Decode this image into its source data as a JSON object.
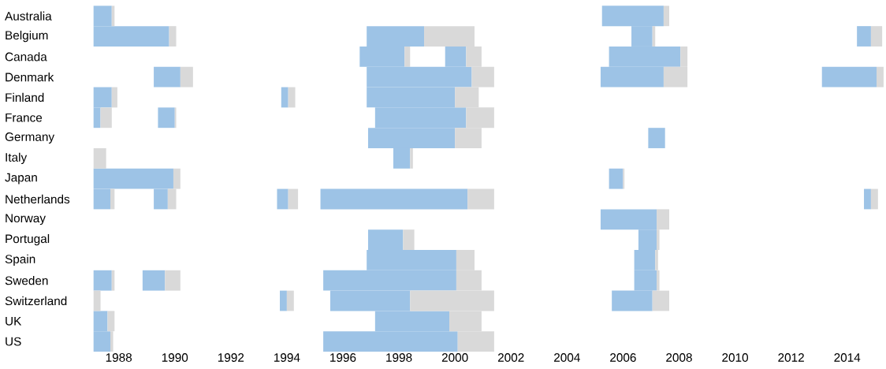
{
  "chart_data": {
    "type": "bar",
    "orientation": "horizontal",
    "categories": [
      "Australia",
      "Belgium",
      "Canada",
      "Denmark",
      "Finland",
      "France",
      "Germany",
      "Italy",
      "Japan",
      "Netherlands",
      "Norway",
      "Portugal",
      "Spain",
      "Sweden",
      "Switzerland",
      "UK",
      "US"
    ],
    "xlim": [
      1987.1,
      2015.35
    ],
    "xticks": [
      1988,
      1990,
      1992,
      1994,
      1996,
      1998,
      2000,
      2002,
      2004,
      2006,
      2008,
      2010,
      2012,
      2014
    ],
    "series": [
      {
        "color": "#9dc3e6",
        "base": [
          1987.1,
          1987.1,
          null,
          null,
          1987.1,
          1987.1,
          null,
          null,
          1987.1,
          1987.1,
          null,
          null,
          null,
          1987.1,
          null,
          1987.1,
          1987.1
        ],
        "values": [
          0.65,
          2.7,
          null,
          null,
          0.65,
          0.25,
          null,
          null,
          2.85,
          0.6,
          null,
          null,
          null,
          0.65,
          null,
          0.5,
          0.6
        ]
      },
      {
        "color": "#d9d9d9",
        "base": [
          1987.75,
          1989.8,
          null,
          null,
          1987.75,
          1987.35,
          null,
          1987.1,
          1989.95,
          1987.7,
          null,
          null,
          null,
          1987.75,
          1987.1,
          1987.6,
          1987.7
        ],
        "values": [
          0.1,
          0.25,
          null,
          null,
          0.2,
          0.4,
          null,
          0.45,
          0.25,
          0.15,
          null,
          null,
          null,
          0.1,
          0.25,
          0.25,
          0.1
        ]
      },
      {
        "color": "#9dc3e6",
        "base": [
          null,
          null,
          null,
          1989.25,
          null,
          1989.4,
          null,
          null,
          null,
          1989.25,
          null,
          null,
          null,
          1988.85,
          null,
          null,
          null
        ],
        "values": [
          null,
          null,
          null,
          0.95,
          null,
          0.6,
          null,
          null,
          null,
          0.5,
          null,
          null,
          null,
          0.8,
          null,
          null,
          null
        ]
      },
      {
        "color": "#d9d9d9",
        "base": [
          null,
          null,
          null,
          1990.2,
          null,
          1990.0,
          null,
          null,
          null,
          1989.75,
          null,
          null,
          null,
          1989.65,
          null,
          null,
          null
        ],
        "values": [
          null,
          null,
          null,
          0.45,
          null,
          0.05,
          null,
          null,
          null,
          0.3,
          null,
          null,
          null,
          0.55,
          null,
          null,
          null
        ]
      },
      {
        "color": "#9dc3e6",
        "base": [
          null,
          null,
          1996.6,
          null,
          1993.8,
          null,
          null,
          null,
          null,
          1993.65,
          null,
          null,
          null,
          null,
          1993.75,
          null,
          null
        ],
        "values": [
          null,
          null,
          1.6,
          null,
          0.25,
          null,
          null,
          null,
          null,
          0.4,
          null,
          null,
          null,
          null,
          0.25,
          null,
          null
        ]
      },
      {
        "color": "#d9d9d9",
        "base": [
          null,
          null,
          1998.2,
          null,
          1994.05,
          null,
          null,
          null,
          null,
          1994.05,
          null,
          null,
          null,
          null,
          1994.0,
          null,
          null
        ],
        "values": [
          null,
          null,
          0.2,
          null,
          0.25,
          null,
          null,
          null,
          null,
          0.35,
          null,
          null,
          null,
          null,
          0.25,
          null,
          null
        ]
      },
      {
        "color": "#9dc3e6",
        "base": [
          null,
          1996.85,
          1999.65,
          1996.85,
          1996.85,
          1997.15,
          1996.9,
          1997.8,
          null,
          1995.2,
          null,
          1996.9,
          1996.85,
          1995.3,
          1995.55,
          1997.15,
          1995.3
        ],
        "values": [
          null,
          2.05,
          0.75,
          3.75,
          3.15,
          3.25,
          3.1,
          0.6,
          null,
          5.25,
          null,
          1.25,
          3.2,
          4.75,
          2.85,
          2.65,
          4.8
        ]
      },
      {
        "color": "#d9d9d9",
        "base": [
          null,
          1998.9,
          2000.4,
          2000.6,
          2000.0,
          2000.4,
          2000.0,
          1998.4,
          null,
          2000.45,
          null,
          1998.15,
          2000.05,
          2000.05,
          1998.4,
          1999.8,
          2000.1
        ],
        "values": [
          null,
          1.8,
          0.55,
          0.8,
          0.85,
          1.0,
          0.95,
          0.1,
          null,
          0.95,
          null,
          0.4,
          0.65,
          0.9,
          3.0,
          1.15,
          1.3
        ]
      },
      {
        "color": "#9dc3e6",
        "base": [
          2005.25,
          2006.3,
          2005.5,
          2005.2,
          null,
          null,
          2006.9,
          null,
          2005.5,
          null,
          2005.2,
          2006.55,
          2006.4,
          2006.4,
          2005.6,
          null,
          null
        ],
        "values": [
          2.2,
          0.75,
          2.55,
          2.25,
          null,
          null,
          0.6,
          null,
          0.5,
          null,
          2.0,
          0.65,
          0.75,
          0.8,
          1.45,
          null,
          null
        ]
      },
      {
        "color": "#d9d9d9",
        "base": [
          2007.45,
          2007.05,
          2008.05,
          2007.45,
          null,
          null,
          null,
          null,
          2006.0,
          null,
          2007.2,
          2007.2,
          2007.15,
          2007.2,
          2007.05,
          null,
          null
        ],
        "values": [
          0.2,
          0.1,
          0.25,
          0.85,
          null,
          null,
          null,
          null,
          0.05,
          null,
          0.45,
          0.1,
          0.1,
          0.1,
          0.6,
          null,
          null
        ]
      },
      {
        "color": "#9dc3e6",
        "base": [
          null,
          2014.35,
          null,
          2013.1,
          null,
          null,
          null,
          null,
          null,
          2014.6,
          null,
          null,
          null,
          null,
          null,
          null,
          null
        ],
        "values": [
          null,
          0.5,
          null,
          1.95,
          null,
          null,
          null,
          null,
          null,
          0.25,
          null,
          null,
          null,
          null,
          null,
          null,
          null
        ]
      },
      {
        "color": "#d9d9d9",
        "base": [
          null,
          2014.85,
          null,
          2015.05,
          null,
          null,
          null,
          null,
          null,
          2014.85,
          null,
          null,
          null,
          null,
          null,
          null,
          null
        ],
        "values": [
          null,
          0.4,
          null,
          0.25,
          null,
          null,
          null,
          null,
          null,
          0.25,
          null,
          null,
          null,
          null,
          null,
          null,
          null
        ]
      }
    ]
  }
}
